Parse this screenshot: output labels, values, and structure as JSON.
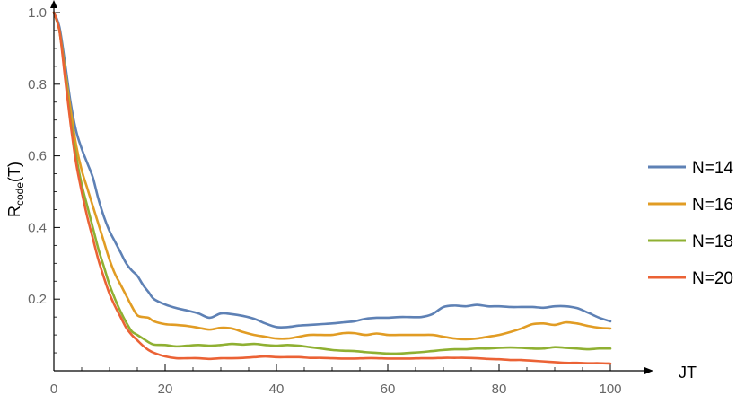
{
  "chart_data": {
    "type": "line",
    "xlabel": "JT",
    "ylabel_main": "R",
    "ylabel_sub": "code",
    "ylabel_tail": "(T)",
    "xlim": [
      0,
      100
    ],
    "ylim": [
      0,
      1.0
    ],
    "x_ticks": [
      0,
      20,
      40,
      60,
      80,
      100
    ],
    "y_ticks": [
      0.2,
      0.4,
      0.6,
      0.8,
      1.0
    ],
    "x_tick_labels": [
      "0",
      "20",
      "40",
      "60",
      "80",
      "100"
    ],
    "y_tick_labels": [
      "0.2",
      "0.4",
      "0.6",
      "0.8",
      "1.0"
    ],
    "grid": false,
    "legend_position": "right",
    "series": [
      {
        "name": "N=14",
        "color": "#5e81b5",
        "points": [
          [
            0,
            1.0
          ],
          [
            1,
            0.96
          ],
          [
            2,
            0.86
          ],
          [
            3,
            0.75
          ],
          [
            4,
            0.67
          ],
          [
            5,
            0.62
          ],
          [
            6,
            0.58
          ],
          [
            7,
            0.54
          ],
          [
            8,
            0.48
          ],
          [
            9,
            0.43
          ],
          [
            10,
            0.39
          ],
          [
            11,
            0.36
          ],
          [
            12,
            0.33
          ],
          [
            13,
            0.3
          ],
          [
            14,
            0.28
          ],
          [
            15,
            0.265
          ],
          [
            16,
            0.24
          ],
          [
            17,
            0.22
          ],
          [
            18,
            0.2
          ],
          [
            20,
            0.185
          ],
          [
            22,
            0.175
          ],
          [
            24,
            0.168
          ],
          [
            26,
            0.16
          ],
          [
            28,
            0.148
          ],
          [
            30,
            0.16
          ],
          [
            32,
            0.158
          ],
          [
            34,
            0.153
          ],
          [
            36,
            0.145
          ],
          [
            38,
            0.132
          ],
          [
            40,
            0.122
          ],
          [
            42,
            0.122
          ],
          [
            44,
            0.126
          ],
          [
            46,
            0.128
          ],
          [
            48,
            0.13
          ],
          [
            50,
            0.132
          ],
          [
            52,
            0.135
          ],
          [
            54,
            0.138
          ],
          [
            56,
            0.145
          ],
          [
            58,
            0.148
          ],
          [
            60,
            0.148
          ],
          [
            62,
            0.15
          ],
          [
            64,
            0.15
          ],
          [
            66,
            0.15
          ],
          [
            68,
            0.158
          ],
          [
            70,
            0.178
          ],
          [
            72,
            0.182
          ],
          [
            74,
            0.18
          ],
          [
            76,
            0.184
          ],
          [
            78,
            0.18
          ],
          [
            80,
            0.18
          ],
          [
            82,
            0.178
          ],
          [
            84,
            0.178
          ],
          [
            86,
            0.178
          ],
          [
            88,
            0.176
          ],
          [
            90,
            0.18
          ],
          [
            92,
            0.18
          ],
          [
            94,
            0.175
          ],
          [
            96,
            0.162
          ],
          [
            98,
            0.148
          ],
          [
            100,
            0.138
          ]
        ]
      },
      {
        "name": "N=16",
        "color": "#e19c24",
        "points": [
          [
            0,
            1.0
          ],
          [
            1,
            0.95
          ],
          [
            2,
            0.84
          ],
          [
            3,
            0.73
          ],
          [
            4,
            0.63
          ],
          [
            5,
            0.56
          ],
          [
            6,
            0.51
          ],
          [
            7,
            0.46
          ],
          [
            8,
            0.41
          ],
          [
            9,
            0.36
          ],
          [
            10,
            0.31
          ],
          [
            11,
            0.27
          ],
          [
            12,
            0.24
          ],
          [
            13,
            0.21
          ],
          [
            14,
            0.18
          ],
          [
            15,
            0.155
          ],
          [
            16,
            0.15
          ],
          [
            17,
            0.148
          ],
          [
            18,
            0.138
          ],
          [
            20,
            0.13
          ],
          [
            22,
            0.128
          ],
          [
            24,
            0.125
          ],
          [
            26,
            0.12
          ],
          [
            28,
            0.115
          ],
          [
            30,
            0.12
          ],
          [
            32,
            0.118
          ],
          [
            34,
            0.108
          ],
          [
            36,
            0.1
          ],
          [
            38,
            0.095
          ],
          [
            40,
            0.09
          ],
          [
            42,
            0.09
          ],
          [
            44,
            0.095
          ],
          [
            46,
            0.1
          ],
          [
            48,
            0.1
          ],
          [
            50,
            0.1
          ],
          [
            52,
            0.105
          ],
          [
            54,
            0.105
          ],
          [
            56,
            0.1
          ],
          [
            58,
            0.104
          ],
          [
            60,
            0.1
          ],
          [
            62,
            0.1
          ],
          [
            64,
            0.1
          ],
          [
            66,
            0.1
          ],
          [
            68,
            0.1
          ],
          [
            70,
            0.095
          ],
          [
            72,
            0.09
          ],
          [
            74,
            0.088
          ],
          [
            76,
            0.09
          ],
          [
            78,
            0.095
          ],
          [
            80,
            0.1
          ],
          [
            82,
            0.108
          ],
          [
            84,
            0.118
          ],
          [
            86,
            0.13
          ],
          [
            88,
            0.132
          ],
          [
            90,
            0.128
          ],
          [
            92,
            0.135
          ],
          [
            94,
            0.132
          ],
          [
            96,
            0.125
          ],
          [
            98,
            0.12
          ],
          [
            100,
            0.118
          ]
        ]
      },
      {
        "name": "N=18",
        "color": "#8fb032",
        "points": [
          [
            0,
            1.0
          ],
          [
            1,
            0.95
          ],
          [
            2,
            0.83
          ],
          [
            3,
            0.7
          ],
          [
            4,
            0.6
          ],
          [
            5,
            0.52
          ],
          [
            6,
            0.46
          ],
          [
            7,
            0.4
          ],
          [
            8,
            0.34
          ],
          [
            9,
            0.29
          ],
          [
            10,
            0.24
          ],
          [
            11,
            0.2
          ],
          [
            12,
            0.165
          ],
          [
            13,
            0.135
          ],
          [
            14,
            0.11
          ],
          [
            15,
            0.1
          ],
          [
            16,
            0.09
          ],
          [
            17,
            0.08
          ],
          [
            18,
            0.073
          ],
          [
            20,
            0.072
          ],
          [
            22,
            0.068
          ],
          [
            24,
            0.07
          ],
          [
            26,
            0.072
          ],
          [
            28,
            0.07
          ],
          [
            30,
            0.072
          ],
          [
            32,
            0.075
          ],
          [
            34,
            0.073
          ],
          [
            36,
            0.075
          ],
          [
            38,
            0.072
          ],
          [
            40,
            0.07
          ],
          [
            42,
            0.072
          ],
          [
            44,
            0.07
          ],
          [
            46,
            0.066
          ],
          [
            48,
            0.062
          ],
          [
            50,
            0.058
          ],
          [
            52,
            0.056
          ],
          [
            54,
            0.055
          ],
          [
            56,
            0.052
          ],
          [
            58,
            0.05
          ],
          [
            60,
            0.048
          ],
          [
            62,
            0.048
          ],
          [
            64,
            0.05
          ],
          [
            66,
            0.052
          ],
          [
            68,
            0.055
          ],
          [
            70,
            0.058
          ],
          [
            72,
            0.06
          ],
          [
            74,
            0.06
          ],
          [
            76,
            0.062
          ],
          [
            78,
            0.062
          ],
          [
            80,
            0.064
          ],
          [
            82,
            0.065
          ],
          [
            84,
            0.064
          ],
          [
            86,
            0.062
          ],
          [
            88,
            0.062
          ],
          [
            90,
            0.066
          ],
          [
            92,
            0.064
          ],
          [
            94,
            0.062
          ],
          [
            96,
            0.06
          ],
          [
            98,
            0.062
          ],
          [
            100,
            0.062
          ]
        ]
      },
      {
        "name": "N=20",
        "color": "#eb6235",
        "points": [
          [
            0,
            1.0
          ],
          [
            1,
            0.95
          ],
          [
            2,
            0.82
          ],
          [
            3,
            0.69
          ],
          [
            4,
            0.58
          ],
          [
            5,
            0.5
          ],
          [
            6,
            0.43
          ],
          [
            7,
            0.37
          ],
          [
            8,
            0.31
          ],
          [
            9,
            0.26
          ],
          [
            10,
            0.215
          ],
          [
            11,
            0.18
          ],
          [
            12,
            0.15
          ],
          [
            13,
            0.12
          ],
          [
            14,
            0.1
          ],
          [
            15,
            0.085
          ],
          [
            16,
            0.07
          ],
          [
            17,
            0.058
          ],
          [
            18,
            0.05
          ],
          [
            20,
            0.04
          ],
          [
            22,
            0.035
          ],
          [
            24,
            0.035
          ],
          [
            26,
            0.035
          ],
          [
            28,
            0.033
          ],
          [
            30,
            0.035
          ],
          [
            32,
            0.035
          ],
          [
            34,
            0.036
          ],
          [
            36,
            0.038
          ],
          [
            38,
            0.04
          ],
          [
            40,
            0.038
          ],
          [
            42,
            0.038
          ],
          [
            44,
            0.038
          ],
          [
            46,
            0.036
          ],
          [
            48,
            0.036
          ],
          [
            50,
            0.035
          ],
          [
            52,
            0.034
          ],
          [
            54,
            0.034
          ],
          [
            56,
            0.035
          ],
          [
            58,
            0.035
          ],
          [
            60,
            0.034
          ],
          [
            62,
            0.034
          ],
          [
            64,
            0.034
          ],
          [
            66,
            0.035
          ],
          [
            68,
            0.035
          ],
          [
            70,
            0.036
          ],
          [
            72,
            0.036
          ],
          [
            74,
            0.036
          ],
          [
            76,
            0.035
          ],
          [
            78,
            0.033
          ],
          [
            80,
            0.032
          ],
          [
            82,
            0.03
          ],
          [
            84,
            0.03
          ],
          [
            86,
            0.028
          ],
          [
            88,
            0.026
          ],
          [
            90,
            0.024
          ],
          [
            92,
            0.022
          ],
          [
            94,
            0.022
          ],
          [
            96,
            0.021
          ],
          [
            98,
            0.021
          ],
          [
            100,
            0.02
          ]
        ]
      }
    ]
  }
}
